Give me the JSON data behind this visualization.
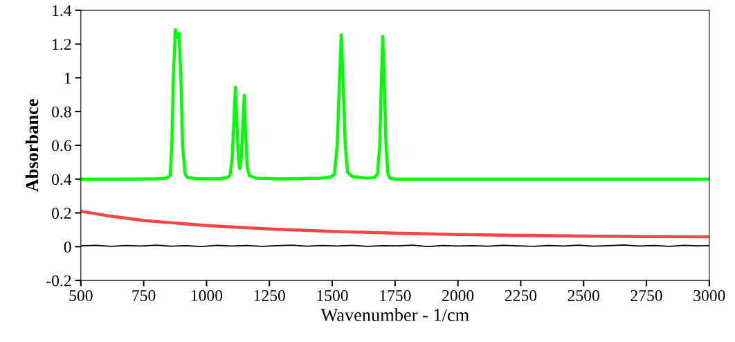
{
  "chart_data": {
    "type": "line",
    "xlabel": "Wavenumber - 1/cm",
    "ylabel": "Absorbance",
    "xlim": [
      500,
      3000
    ],
    "ylim": [
      -0.2,
      1.4
    ],
    "xticks": [
      500,
      750,
      1000,
      1250,
      1500,
      1750,
      2000,
      2250,
      2500,
      2750,
      3000
    ],
    "yticks": [
      -0.2,
      0,
      0.2,
      0.4,
      0.6,
      0.8,
      1,
      1.2,
      1.4
    ],
    "grid": false,
    "legend": false,
    "marker": "none",
    "line_style": "solid",
    "series": [
      {
        "color": "#00ff00",
        "x": [
          500,
          700,
          800,
          840,
          855,
          862,
          868,
          876,
          883,
          891,
          898,
          905,
          915,
          924,
          960,
          1050,
          1080,
          1093,
          1102,
          1109,
          1115,
          1121,
          1127,
          1132,
          1138,
          1144,
          1150,
          1156,
          1162,
          1171,
          1200,
          1300,
          1450,
          1495,
          1509,
          1520,
          1528,
          1536,
          1544,
          1552,
          1561,
          1580,
          1640,
          1668,
          1680,
          1689,
          1696,
          1701,
          1707,
          1714,
          1722,
          1730,
          1750,
          2000,
          2500,
          3000
        ],
        "values": [
          0.4,
          0.4,
          0.402,
          0.405,
          0.42,
          0.6,
          1.0,
          1.286,
          1.24,
          1.263,
          1.0,
          0.6,
          0.43,
          0.41,
          0.402,
          0.402,
          0.408,
          0.42,
          0.52,
          0.75,
          0.945,
          0.72,
          0.52,
          0.462,
          0.52,
          0.7,
          0.897,
          0.65,
          0.47,
          0.42,
          0.405,
          0.401,
          0.405,
          0.412,
          0.43,
          0.6,
          0.95,
          1.255,
          0.95,
          0.6,
          0.44,
          0.415,
          0.405,
          0.41,
          0.43,
          0.6,
          1.0,
          1.245,
          1.0,
          0.6,
          0.43,
          0.405,
          0.4,
          0.4,
          0.4,
          0.4
        ]
      },
      {
        "color": "#ff4444",
        "x": [
          500,
          600,
          750,
          1000,
          1250,
          1500,
          1750,
          2000,
          2250,
          2500,
          2750,
          3000
        ],
        "values": [
          0.21,
          0.185,
          0.155,
          0.125,
          0.105,
          0.09,
          0.08,
          0.072,
          0.067,
          0.063,
          0.06,
          0.058
        ]
      },
      {
        "color": "#000000",
        "x": [
          500,
          560,
          620,
          680,
          740,
          800,
          860,
          920,
          980,
          1040,
          1100,
          1160,
          1220,
          1280,
          1340,
          1400,
          1460,
          1520,
          1580,
          1640,
          1700,
          1760,
          1820,
          1880,
          1940,
          2000,
          2060,
          2120,
          2180,
          2240,
          2300,
          2360,
          2420,
          2480,
          2540,
          2600,
          2660,
          2720,
          2780,
          2840,
          2900,
          2960,
          3000
        ],
        "values": [
          0.005,
          0.008,
          0.002,
          0.007,
          0.004,
          0.009,
          0.003,
          0.006,
          0.001,
          0.008,
          0.004,
          0.007,
          0.002,
          0.006,
          0.009,
          0.003,
          0.007,
          0.004,
          0.008,
          0.002,
          0.006,
          0.005,
          0.009,
          0.001,
          0.007,
          0.004,
          0.006,
          0.003,
          0.008,
          0.005,
          0.002,
          0.007,
          0.004,
          0.009,
          0.003,
          0.006,
          0.01,
          0.004,
          0.007,
          0.002,
          0.008,
          0.005,
          0.006
        ]
      }
    ]
  }
}
